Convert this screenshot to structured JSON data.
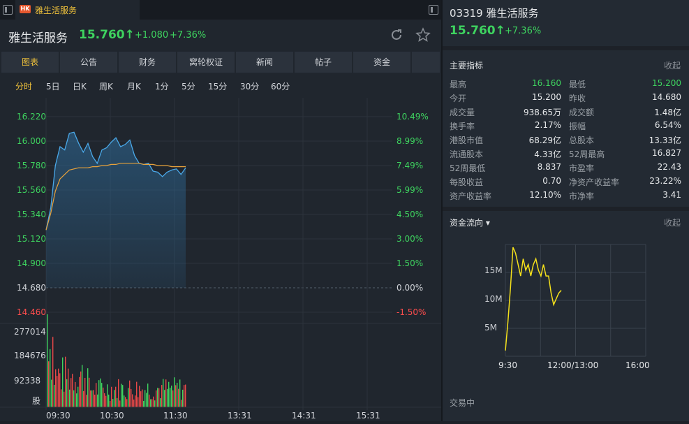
{
  "tab": {
    "badge": "HK",
    "title": "雅生活服务"
  },
  "header": {
    "name": "雅生活服务",
    "price": "15.760↑",
    "change": "+1.080",
    "pct": "+7.36%"
  },
  "nav": [
    "图表",
    "公告",
    "财务",
    "窝轮权证",
    "新闻",
    "帖子",
    "资金"
  ],
  "periods": [
    "分时",
    "5日",
    "日K",
    "周K",
    "月K",
    "1分",
    "5分",
    "15分",
    "30分",
    "60分"
  ],
  "chart": {
    "price_ticks": [
      "16.220",
      "16.000",
      "15.780",
      "15.560",
      "15.340",
      "15.120",
      "14.900",
      "14.680",
      "14.460"
    ],
    "pct_ticks": [
      "10.49%",
      "8.99%",
      "7.49%",
      "5.99%",
      "4.50%",
      "3.00%",
      "1.50%",
      "0.00%",
      "-1.50%"
    ],
    "vol_ticks": [
      "277014",
      "184676",
      "92338",
      "股"
    ],
    "time_ticks": [
      "09:30",
      "10:30",
      "11:30",
      "13:31",
      "14:31",
      "15:31"
    ]
  },
  "chart_data": [
    {
      "type": "line",
      "title": "分时",
      "xlabel": "",
      "ylabel": "",
      "ylim": [
        14.39,
        16.29
      ],
      "prev_close": 14.68,
      "x": [
        "09:30",
        "09:35",
        "09:40",
        "09:45",
        "09:50",
        "09:55",
        "10:00",
        "10:05",
        "10:10",
        "10:15",
        "10:20",
        "10:25",
        "10:30",
        "10:35",
        "10:40",
        "10:45",
        "10:50",
        "10:55",
        "11:00",
        "11:05",
        "11:10",
        "11:15",
        "11:20",
        "11:25",
        "11:30",
        "11:35",
        "11:40",
        "11:45",
        "11:50",
        "11:55",
        "12:00"
      ],
      "series": [
        {
          "name": "",
          "values": [
            15.2,
            15.4,
            15.78,
            15.95,
            15.92,
            16.07,
            16.08,
            15.98,
            15.9,
            15.98,
            15.86,
            15.8,
            15.92,
            15.94,
            15.99,
            16.03,
            15.95,
            15.97,
            16.01,
            15.87,
            15.8,
            15.79,
            15.8,
            15.73,
            15.72,
            15.68,
            15.72,
            15.74,
            15.75,
            15.7,
            15.76
          ]
        },
        {
          "name": "",
          "values": [
            15.2,
            15.35,
            15.55,
            15.66,
            15.7,
            15.74,
            15.75,
            15.76,
            15.76,
            15.76,
            15.77,
            15.77,
            15.78,
            15.78,
            15.79,
            15.79,
            15.8,
            15.8,
            15.8,
            15.8,
            15.8,
            15.79,
            15.79,
            15.79,
            15.78,
            15.78,
            15.78,
            15.77,
            15.77,
            15.77,
            15.77
          ]
        }
      ]
    },
    {
      "type": "line",
      "title": "资金流向",
      "xlabel": "",
      "ylabel": "",
      "ylim": [
        0,
        19.5
      ],
      "x_ticks": [
        "9:30",
        "12:00/13:00",
        "16:00"
      ],
      "y_ticks": [
        "15M",
        "10M",
        "5M"
      ],
      "series": [
        {
          "name": "",
          "values": [
            1,
            6,
            12,
            19,
            18,
            16,
            14,
            17,
            15,
            16,
            14,
            16,
            17,
            15,
            14,
            16,
            14,
            14,
            11,
            9,
            10,
            11,
            11.5
          ]
        }
      ]
    }
  ],
  "right": {
    "title": "03319 雅生活服务",
    "price": "15.760↑",
    "pct": "+7.36%",
    "metrics_head": "主要指标",
    "collapse": "收起",
    "metrics": [
      [
        "最高",
        "16.160",
        "最低",
        "15.200"
      ],
      [
        "今开",
        "15.200",
        "昨收",
        "14.680"
      ],
      [
        "成交量",
        "938.65万",
        "成交额",
        "1.48亿"
      ],
      [
        "换手率",
        "2.17%",
        "振幅",
        "6.54%"
      ],
      [
        "港股市值",
        "68.29亿",
        "总股本",
        "13.33亿"
      ],
      [
        "流通股本",
        "4.33亿",
        "52周最高",
        "16.827"
      ],
      [
        "52周最低",
        "8.837",
        "市盈率",
        "22.43"
      ],
      [
        "每股收益",
        "0.70",
        "净资产收益率",
        "23.22%"
      ],
      [
        "资产收益率",
        "12.10%",
        "市净率",
        "3.41"
      ]
    ],
    "flow_head": "资金流向 ▾",
    "flow_collapse": "收起",
    "status": "交易中"
  },
  "colors": {
    "up": "#3ed35f",
    "down": "#ff4d4d",
    "accent": "#f0c23b",
    "line": "#4aa8e8",
    "avg": "#e8a23b"
  }
}
